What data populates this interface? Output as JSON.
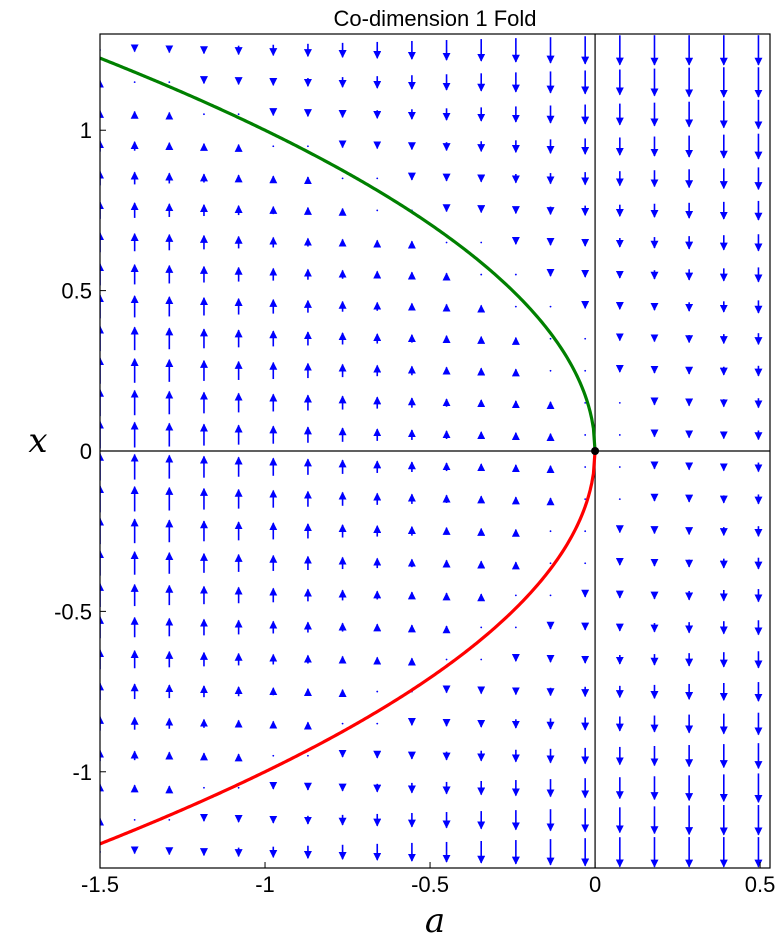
{
  "chart_data": {
    "type": "quiver",
    "title": "Co-dimension 1 Fold",
    "xlabel": "a",
    "ylabel": "x",
    "xlim": [
      -1.5,
      0.53
    ],
    "ylim": [
      -1.3,
      1.3
    ],
    "x_ticks": [
      {
        "value": -1.5,
        "label": "-1.5"
      },
      {
        "value": -1,
        "label": "-1"
      },
      {
        "value": -0.5,
        "label": "-0.5"
      },
      {
        "value": 0,
        "label": "0"
      },
      {
        "value": 0.5,
        "label": "0.5"
      }
    ],
    "y_ticks": [
      {
        "value": -1,
        "label": "-1"
      },
      {
        "value": -0.5,
        "label": "-0.5"
      },
      {
        "value": 0,
        "label": "0"
      },
      {
        "value": 0.5,
        "label": "0.5"
      },
      {
        "value": 1,
        "label": "1"
      }
    ],
    "vector_field": {
      "equation": "dx/dt = -(a + x^2)",
      "a_range": [
        -1.5,
        0.5
      ],
      "a_step": 0.105,
      "x_range": [
        -1.25,
        1.25
      ],
      "x_step": 0.1,
      "color": "#0000ff"
    },
    "series": [
      {
        "branch": "upper",
        "equation": "x = sqrt(-a)",
        "color": "#008000",
        "a_range": [
          -1.5,
          0
        ]
      },
      {
        "branch": "lower",
        "equation": "x = -sqrt(-a)",
        "color": "#ff0000",
        "a_range": [
          -1.5,
          0
        ]
      }
    ],
    "fold_point": {
      "a": 0,
      "x": 0,
      "color": "#000000"
    },
    "reference_lines": {
      "a": 0,
      "x": 0
    },
    "grid": false
  }
}
